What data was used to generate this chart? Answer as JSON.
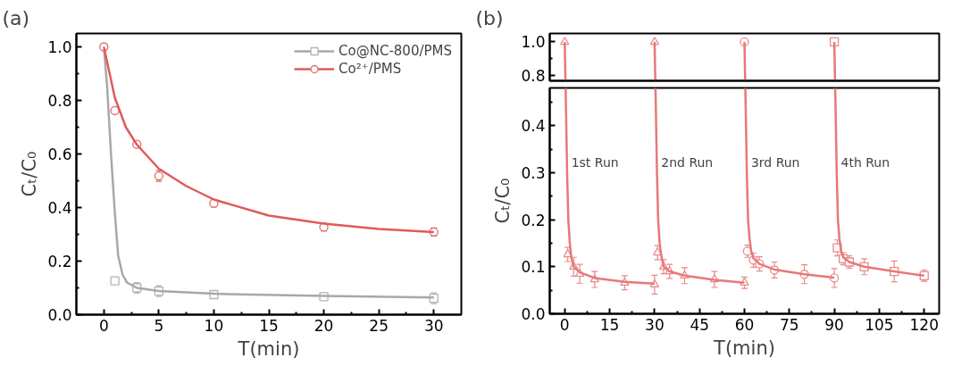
{
  "chart_data": [
    {
      "type": "scatter",
      "title": "(a)",
      "xlabel": "T(min)",
      "ylabel": "Cₜ/C₀",
      "xlim": [
        -2.5,
        32.5
      ],
      "ylim": [
        0,
        1.05
      ],
      "xticks": [
        0,
        {
          "value": 2.5,
          "label": null
        },
        5,
        {
          "value": 7.5,
          "label": null
        },
        10,
        {
          "value": 12.5,
          "label": null
        },
        15,
        {
          "value": 17.5,
          "label": null
        },
        20,
        {
          "value": 22.5,
          "label": null
        },
        25,
        {
          "value": 27.5,
          "label": null
        },
        30
      ],
      "yticks": [
        "0.0",
        {
          "value": 0.1,
          "label": null
        },
        0.2,
        {
          "value": 0.3,
          "label": null
        },
        0.4,
        {
          "value": 0.5,
          "label": null
        },
        0.6,
        {
          "value": 0.7,
          "label": null
        },
        0.8,
        {
          "value": 0.9,
          "label": null
        },
        {
          "value": 1.0,
          "label": "1.0"
        }
      ],
      "legend": "top right",
      "grid": false,
      "series": [
        {
          "name": "Co@NC-800/PMS",
          "marker": "square",
          "color": "#b4b4b4",
          "x": [
            1,
            3,
            5,
            10,
            20,
            30
          ],
          "values": [
            0.126,
            0.1,
            0.088,
            0.075,
            0.067,
            0.061
          ],
          "errors": [
            0.012,
            0.02,
            0.02,
            0.015,
            0.012,
            0.02
          ]
        },
        {
          "type": "line",
          "color": "#a8a8a8",
          "x": [
            0,
            0.3,
            0.65,
            1,
            1.3,
            1.7,
            2.1,
            3,
            5,
            10,
            20,
            30
          ],
          "values": [
            1.0,
            0.85,
            0.6,
            0.38,
            0.22,
            0.15,
            0.12,
            0.1,
            0.088,
            0.078,
            0.07,
            0.064
          ]
        },
        {
          "name": "Co²⁺/PMS",
          "marker": "circle",
          "color": "#e06a6a",
          "x": [
            0,
            1,
            3,
            5,
            10,
            20,
            30
          ],
          "values": [
            1.0,
            0.762,
            0.636,
            0.518,
            0.416,
            0.327,
            0.309
          ],
          "errors": [
            null,
            0.012,
            0.012,
            0.02,
            0.014,
            0.014,
            0.015
          ]
        },
        {
          "type": "line",
          "color": "#e05a5a",
          "x": [
            0,
            1,
            2,
            3,
            5,
            7.5,
            10,
            15,
            20,
            25,
            30
          ],
          "values": [
            1.0,
            0.81,
            0.7,
            0.635,
            0.545,
            0.48,
            0.43,
            0.37,
            0.34,
            0.32,
            0.308
          ]
        }
      ]
    },
    {
      "type": "scatter",
      "title": "(b)",
      "xlim": [
        -5,
        125
      ],
      "ylim": [
        0.77,
        1.05
      ],
      "xticks": [
        0,
        15,
        30,
        45,
        60,
        75,
        90,
        105,
        120
      ],
      "yticks": [
        {
          "value": 0.8,
          "label": "0.8"
        },
        {
          "value": 0.9,
          "label": null
        },
        {
          "value": 1.0,
          "label": "1.0"
        }
      ],
      "tick_labels": "y",
      "grid": false,
      "series": [
        {
          "marker": "triangle",
          "color": "#e88a8a",
          "x": [
            0
          ],
          "values": [
            1.0
          ]
        },
        {
          "marker": "triangle",
          "color": "#e88a8a",
          "x": [
            30
          ],
          "values": [
            1.0
          ]
        },
        {
          "marker": "circle",
          "color": "#e88a8a",
          "x": [
            60
          ],
          "values": [
            1.0
          ]
        },
        {
          "marker": "square",
          "color": "#e88a8a",
          "x": [
            90
          ],
          "values": [
            1.0
          ]
        },
        {
          "type": "line",
          "color": "#e87878",
          "x": [
            0,
            0.25
          ],
          "values": [
            1.0,
            0.77
          ]
        },
        {
          "type": "line",
          "color": "#e87878",
          "x": [
            30,
            30.25
          ],
          "values": [
            1.0,
            0.77
          ]
        },
        {
          "type": "line",
          "color": "#e87878",
          "x": [
            60,
            60.25
          ],
          "values": [
            1.0,
            0.77
          ]
        },
        {
          "type": "line",
          "color": "#e87878",
          "x": [
            90,
            90.25
          ],
          "values": [
            1.0,
            0.77
          ]
        }
      ]
    },
    {
      "type": "scatter",
      "xlabel": "T(min)",
      "ylabel": "Cₜ/C₀",
      "xlim": [
        -5,
        125
      ],
      "ylim": [
        0,
        0.48
      ],
      "xticks": [
        0,
        {
          "value": 7.5,
          "label": null
        },
        15,
        {
          "value": 22.5,
          "label": null
        },
        30,
        {
          "value": 37.5,
          "label": null
        },
        45,
        {
          "value": 52.5,
          "label": null
        },
        60,
        {
          "value": 67.5,
          "label": null
        },
        75,
        {
          "value": 82.5,
          "label": null
        },
        90,
        {
          "value": 97.5,
          "label": null
        },
        105,
        {
          "value": 112.5,
          "label": null
        },
        120
      ],
      "yticks": [
        "0.0",
        {
          "value": 0.05,
          "label": null
        },
        0.1,
        {
          "value": 0.15,
          "label": null
        },
        0.2,
        {
          "value": 0.25,
          "label": null
        },
        0.3,
        {
          "value": 0.35,
          "label": null
        },
        0.4,
        {
          "value": 0.45,
          "label": null
        }
      ],
      "grid": false,
      "annotations": [
        "1st Run",
        "2nd Run",
        "3rd Run",
        "4th Run"
      ],
      "series": [
        {
          "marker": "triangle",
          "color": "#e88a8a",
          "x": [
            1,
            3,
            5,
            10,
            20,
            30
          ],
          "values": [
            0.126,
            0.1,
            0.085,
            0.073,
            0.066,
            0.062
          ],
          "errors": [
            0.015,
            0.02,
            0.02,
            0.017,
            0.015,
            0.02
          ]
        },
        {
          "marker": "triangle",
          "color": "#e88a8a",
          "x": [
            31,
            33,
            35,
            40,
            50,
            60
          ],
          "values": [
            0.13,
            0.1,
            0.09,
            0.081,
            0.073,
            0.066
          ],
          "errors": [
            0.015,
            0.015,
            0.015,
            0.017,
            0.017,
            0.012
          ]
        },
        {
          "marker": "circle",
          "color": "#e88a8a",
          "x": [
            61,
            63,
            65,
            70,
            80,
            90
          ],
          "values": [
            0.133,
            0.114,
            0.106,
            0.093,
            0.084,
            0.076
          ],
          "errors": [
            0.013,
            0.015,
            0.015,
            0.017,
            0.02,
            0.02
          ]
        },
        {
          "marker": "square",
          "color": "#e88a8a",
          "x": [
            91,
            93,
            95,
            100,
            110,
            120
          ],
          "values": [
            0.14,
            0.117,
            0.11,
            0.1,
            0.09,
            0.081
          ],
          "errors": [
            0.017,
            0.013,
            0.013,
            0.017,
            0.022,
            0.012
          ]
        },
        {
          "type": "line",
          "color": "#e87878",
          "x": [
            0.3,
            0.8,
            1.2,
            1.7,
            2.2,
            3,
            5,
            10,
            20,
            30
          ],
          "values": [
            0.48,
            0.3,
            0.2,
            0.15,
            0.12,
            0.1,
            0.088,
            0.076,
            0.068,
            0.064
          ]
        },
        {
          "type": "line",
          "color": "#e87878",
          "x": [
            30.3,
            30.8,
            31.2,
            31.7,
            32.2,
            33,
            35,
            40,
            50,
            60
          ],
          "values": [
            0.48,
            0.3,
            0.2,
            0.15,
            0.125,
            0.1,
            0.09,
            0.081,
            0.072,
            0.066
          ]
        },
        {
          "type": "line",
          "color": "#e87878",
          "x": [
            60.3,
            60.8,
            61.2,
            61.7,
            62.2,
            63,
            65,
            70,
            80,
            90
          ],
          "values": [
            0.48,
            0.3,
            0.2,
            0.16,
            0.135,
            0.118,
            0.106,
            0.094,
            0.084,
            0.077
          ]
        },
        {
          "type": "line",
          "color": "#e87878",
          "x": [
            90.3,
            90.8,
            91.2,
            91.7,
            92.2,
            93,
            95,
            100,
            110,
            120
          ],
          "values": [
            0.48,
            0.3,
            0.2,
            0.16,
            0.135,
            0.12,
            0.11,
            0.1,
            0.09,
            0.081
          ]
        }
      ]
    }
  ]
}
